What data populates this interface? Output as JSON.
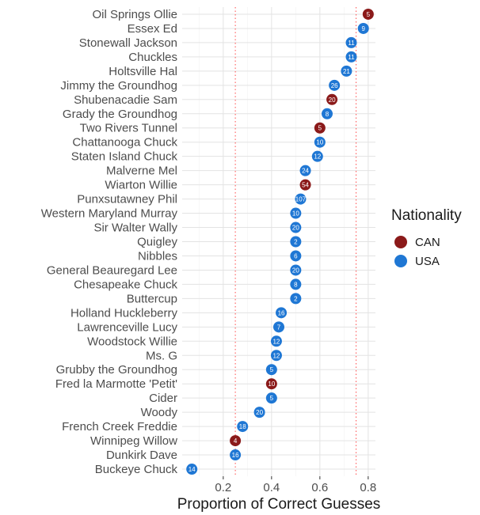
{
  "chart_data": {
    "type": "scatter",
    "xlabel": "Proportion of Correct Guesses",
    "ylabel": "",
    "xlim": [
      0.03,
      0.83
    ],
    "x_ticks": [
      0.2,
      0.4,
      0.6,
      0.8
    ],
    "x_tick_labels": [
      "0.2",
      "0.4",
      "0.6",
      "0.8"
    ],
    "reference_lines": [
      0.25,
      0.75
    ],
    "grid": true,
    "legend": {
      "title": "Nationality",
      "position": "right",
      "entries": [
        {
          "label": "CAN",
          "color": "#8b1a1a"
        },
        {
          "label": "USA",
          "color": "#1f77d4"
        }
      ]
    },
    "points": [
      {
        "name": "Oil Springs Ollie",
        "x": 0.8,
        "label": "5",
        "group": "CAN"
      },
      {
        "name": "Essex Ed",
        "x": 0.78,
        "label": "9",
        "group": "USA"
      },
      {
        "name": "Stonewall Jackson",
        "x": 0.73,
        "label": "11",
        "group": "USA"
      },
      {
        "name": "Chuckles",
        "x": 0.73,
        "label": "11",
        "group": "USA"
      },
      {
        "name": "Holtsville Hal",
        "x": 0.71,
        "label": "21",
        "group": "USA"
      },
      {
        "name": "Jimmy the Groundhog",
        "x": 0.66,
        "label": "26",
        "group": "USA"
      },
      {
        "name": "Shubenacadie Sam",
        "x": 0.65,
        "label": "20",
        "group": "CAN"
      },
      {
        "name": "Grady the Groundhog",
        "x": 0.63,
        "label": "8",
        "group": "USA"
      },
      {
        "name": "Two Rivers Tunnel",
        "x": 0.6,
        "label": "5",
        "group": "CAN"
      },
      {
        "name": "Chattanooga Chuck",
        "x": 0.6,
        "label": "10",
        "group": "USA"
      },
      {
        "name": "Staten Island Chuck",
        "x": 0.59,
        "label": "12",
        "group": "USA"
      },
      {
        "name": "Malverne Mel",
        "x": 0.54,
        "label": "24",
        "group": "USA"
      },
      {
        "name": "Wiarton Willie",
        "x": 0.54,
        "label": "54",
        "group": "CAN"
      },
      {
        "name": "Punxsutawney Phil",
        "x": 0.52,
        "label": "107",
        "group": "USA"
      },
      {
        "name": "Western Maryland Murray",
        "x": 0.5,
        "label": "10",
        "group": "USA"
      },
      {
        "name": "Sir Walter Wally",
        "x": 0.5,
        "label": "20",
        "group": "USA"
      },
      {
        "name": "Quigley",
        "x": 0.5,
        "label": "2",
        "group": "USA"
      },
      {
        "name": "Nibbles",
        "x": 0.5,
        "label": "6",
        "group": "USA"
      },
      {
        "name": "General Beauregard Lee",
        "x": 0.5,
        "label": "20",
        "group": "USA"
      },
      {
        "name": "Chesapeake Chuck",
        "x": 0.5,
        "label": "8",
        "group": "USA"
      },
      {
        "name": "Buttercup",
        "x": 0.5,
        "label": "2",
        "group": "USA"
      },
      {
        "name": "Holland Huckleberry",
        "x": 0.44,
        "label": "16",
        "group": "USA"
      },
      {
        "name": "Lawrenceville Lucy",
        "x": 0.43,
        "label": "7",
        "group": "USA"
      },
      {
        "name": "Woodstock Willie",
        "x": 0.42,
        "label": "12",
        "group": "USA"
      },
      {
        "name": "Ms. G",
        "x": 0.42,
        "label": "12",
        "group": "USA"
      },
      {
        "name": "Grubby the Groundhog",
        "x": 0.4,
        "label": "5",
        "group": "USA"
      },
      {
        "name": "Fred la Marmotte 'Petit'",
        "x": 0.4,
        "label": "10",
        "group": "CAN"
      },
      {
        "name": "Cider",
        "x": 0.4,
        "label": "5",
        "group": "USA"
      },
      {
        "name": "Woody",
        "x": 0.35,
        "label": "20",
        "group": "USA"
      },
      {
        "name": "French Creek Freddie",
        "x": 0.28,
        "label": "18",
        "group": "USA"
      },
      {
        "name": "Winnipeg Willow",
        "x": 0.25,
        "label": "4",
        "group": "CAN"
      },
      {
        "name": "Dunkirk Dave",
        "x": 0.25,
        "label": "16",
        "group": "USA"
      },
      {
        "name": "Buckeye Chuck",
        "x": 0.07,
        "label": "14",
        "group": "USA"
      }
    ]
  }
}
